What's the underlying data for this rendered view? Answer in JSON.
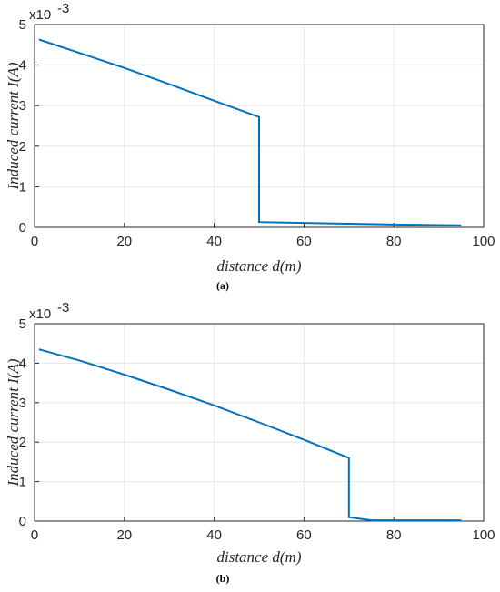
{
  "chart_data": [
    {
      "type": "line",
      "caption": "(a)",
      "xlabel": "distance d(m)",
      "ylabel": "Induced current I(A)",
      "y_exponent": "x10",
      "y_exponent_power": "-3",
      "xlim": [
        0,
        100
      ],
      "ylim": [
        0,
        5
      ],
      "xticks": [
        "0",
        "20",
        "40",
        "60",
        "80",
        "100"
      ],
      "yticks": [
        "0",
        "1",
        "2",
        "3",
        "4",
        "5"
      ],
      "grid": true,
      "color": "#0072BD",
      "series": [
        {
          "x": [
            1,
            10,
            20,
            30,
            40,
            50,
            50,
            60,
            70,
            80,
            95
          ],
          "y": [
            4.63,
            4.3,
            3.93,
            3.53,
            3.12,
            2.72,
            0.13,
            0.11,
            0.09,
            0.07,
            0.05
          ]
        }
      ]
    },
    {
      "type": "line",
      "caption": "(b)",
      "xlabel": "distance d(m)",
      "ylabel": "Induced current I(A)",
      "y_exponent": "x10",
      "y_exponent_power": "-3",
      "xlim": [
        0,
        100
      ],
      "ylim": [
        0,
        5
      ],
      "xticks": [
        "0",
        "20",
        "40",
        "60",
        "80",
        "100"
      ],
      "yticks": [
        "0",
        "1",
        "2",
        "3",
        "4",
        "5"
      ],
      "grid": true,
      "color": "#0072BD",
      "series": [
        {
          "x": [
            1,
            10,
            20,
            30,
            40,
            50,
            60,
            70,
            70,
            75,
            80,
            95
          ],
          "y": [
            4.35,
            4.07,
            3.71,
            3.33,
            2.93,
            2.5,
            2.06,
            1.6,
            0.1,
            0.02,
            0.02,
            0.02
          ]
        }
      ]
    }
  ]
}
